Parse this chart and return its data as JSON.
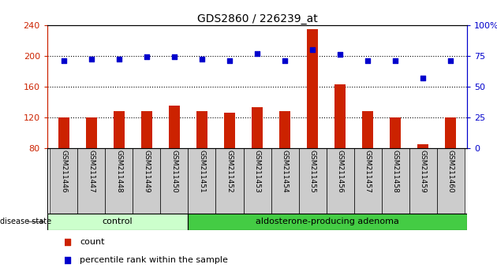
{
  "title": "GDS2860 / 226239_at",
  "samples": [
    "GSM211446",
    "GSM211447",
    "GSM211448",
    "GSM211449",
    "GSM211450",
    "GSM211451",
    "GSM211452",
    "GSM211453",
    "GSM211454",
    "GSM211455",
    "GSM211456",
    "GSM211457",
    "GSM211458",
    "GSM211459",
    "GSM211460"
  ],
  "counts": [
    120,
    120,
    128,
    128,
    135,
    128,
    126,
    133,
    128,
    235,
    163,
    128,
    120,
    85,
    120
  ],
  "percentiles": [
    71,
    72,
    72,
    74,
    74,
    72,
    71,
    77,
    71,
    80,
    76,
    71,
    71,
    57,
    71
  ],
  "bar_color": "#cc2200",
  "dot_color": "#0000cc",
  "ylim_left": [
    80,
    240
  ],
  "ylim_right": [
    0,
    100
  ],
  "yticks_left": [
    80,
    120,
    160,
    200,
    240
  ],
  "yticks_right": [
    0,
    25,
    50,
    75,
    100
  ],
  "yticklabels_right": [
    "0",
    "25",
    "50",
    "75",
    "100%"
  ],
  "grid_values": [
    120,
    160,
    200
  ],
  "control_end": 5,
  "control_label": "control",
  "adenoma_label": "aldosterone-producing adenoma",
  "disease_state_label": "disease state",
  "legend_count": "count",
  "legend_percentile": "percentile rank within the sample",
  "control_color": "#ccffcc",
  "adenoma_color": "#44cc44",
  "tick_color_left": "#cc2200",
  "tick_color_right": "#0000cc",
  "label_color_left": "#cc2200",
  "label_color_right": "#0000cc",
  "bar_width": 0.4,
  "xlim": [
    -0.6,
    14.6
  ]
}
